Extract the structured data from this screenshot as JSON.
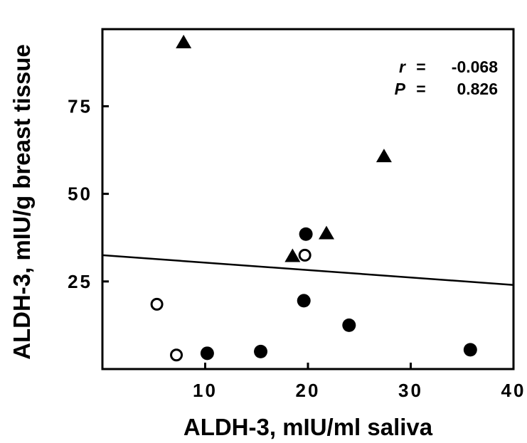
{
  "chart_data": {
    "type": "scatter",
    "title": "",
    "xlabel": "ALDH-3, mIU/ml saliva",
    "ylabel": "ALDH-3, mIU/g breast tissue",
    "xlim": [
      0,
      40
    ],
    "ylim": [
      0,
      97
    ],
    "xticks": [
      10,
      20,
      30,
      40
    ],
    "xtick_labels": [
      "10",
      "20",
      "30",
      "40"
    ],
    "yticks": [
      25,
      50,
      75
    ],
    "ytick_labels": [
      "25",
      "50",
      "75"
    ],
    "grid": false,
    "legend": "none",
    "series": [
      {
        "marker": "filled-circle",
        "points": [
          {
            "x": 10.2,
            "y": 4.5
          },
          {
            "x": 15.4,
            "y": 5.0
          },
          {
            "x": 19.6,
            "y": 19.5
          },
          {
            "x": 19.8,
            "y": 38.5
          },
          {
            "x": 24.0,
            "y": 12.5
          },
          {
            "x": 35.8,
            "y": 5.5
          }
        ]
      },
      {
        "marker": "open-circle",
        "points": [
          {
            "x": 5.3,
            "y": 18.5
          },
          {
            "x": 7.2,
            "y": 4.0
          },
          {
            "x": 19.7,
            "y": 32.5
          }
        ]
      },
      {
        "marker": "filled-triangle",
        "points": [
          {
            "x": 7.9,
            "y": 93.0
          },
          {
            "x": 18.5,
            "y": 32.0
          },
          {
            "x": 21.8,
            "y": 38.5
          },
          {
            "x": 27.4,
            "y": 60.5
          }
        ]
      }
    ],
    "regression_line": {
      "x": [
        0,
        40
      ],
      "y": [
        32.5,
        24.0
      ]
    },
    "annotation": {
      "r_label": "r",
      "r_eq": "=",
      "r_value": "-0.068",
      "p_label": "P",
      "p_eq": "=",
      "p_value": "0.826"
    }
  }
}
